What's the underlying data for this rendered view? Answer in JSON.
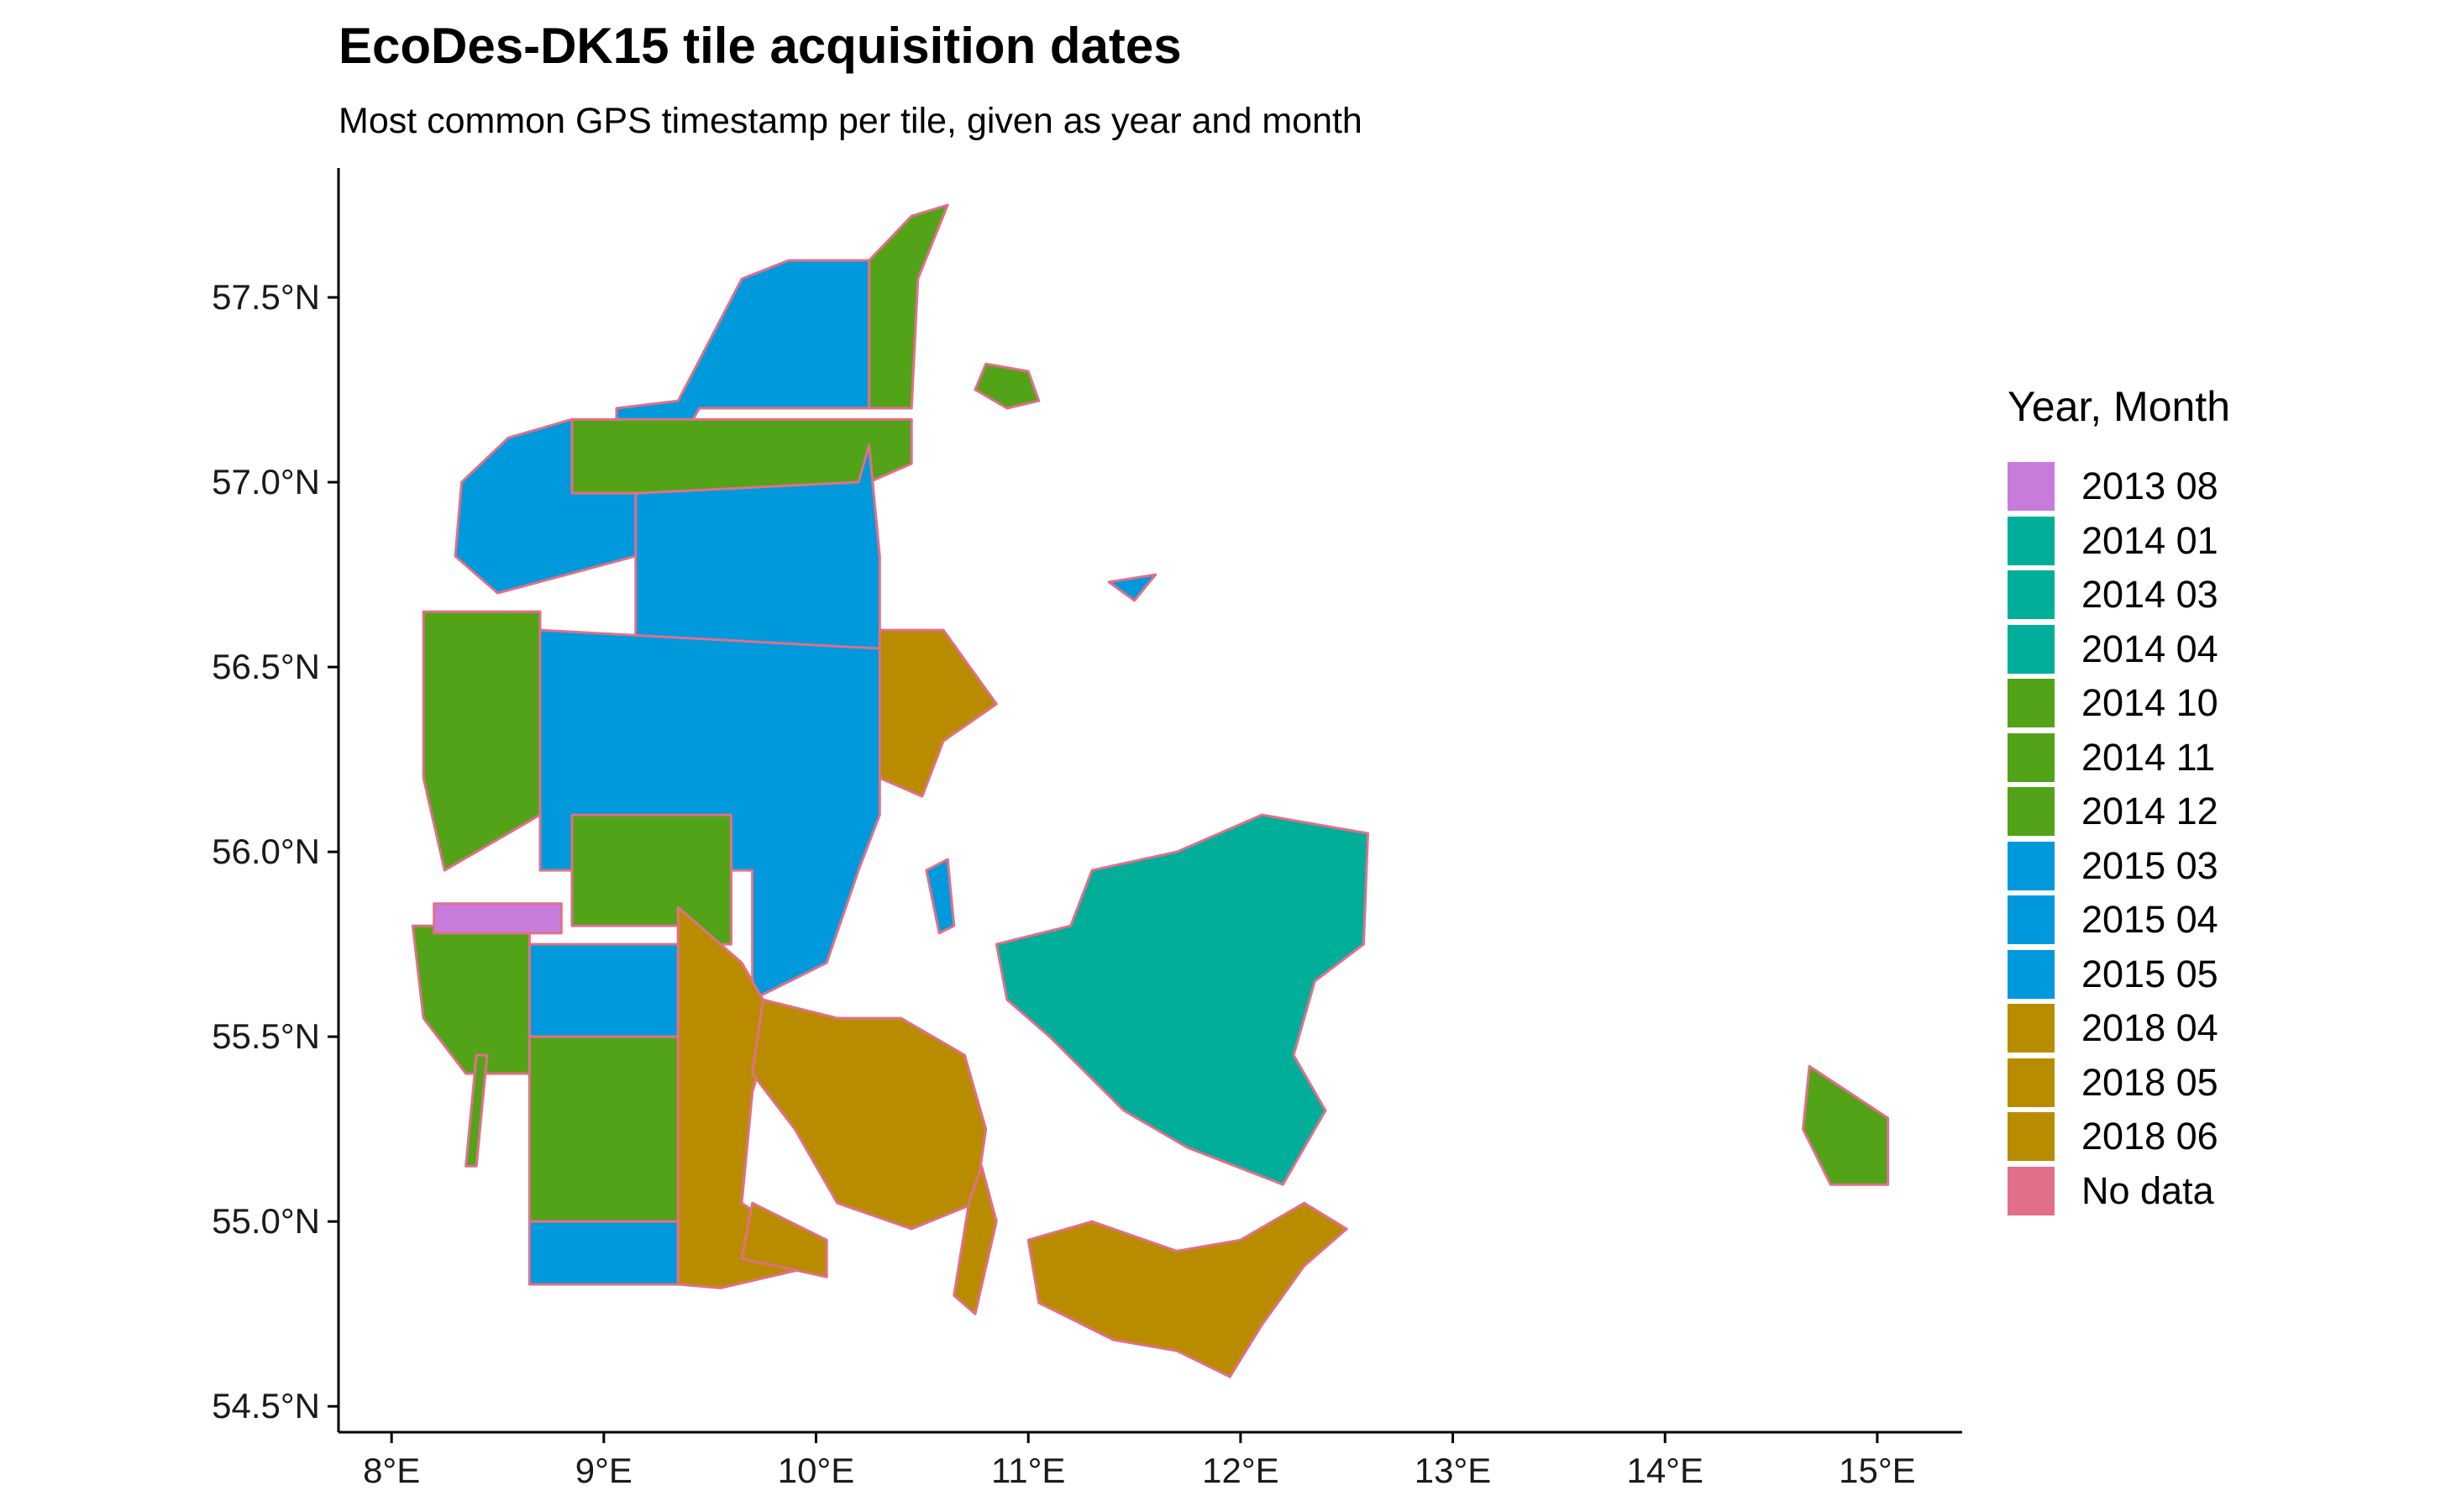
{
  "title": "EcoDes-DK15 tile acquisition dates",
  "subtitle": "Most common GPS timestamp per tile, given as year and month",
  "axes": {
    "x_ticks": [
      {
        "value": 8,
        "label": "8°E"
      },
      {
        "value": 9,
        "label": "9°E"
      },
      {
        "value": 10,
        "label": "10°E"
      },
      {
        "value": 11,
        "label": "11°E"
      },
      {
        "value": 12,
        "label": "12°E"
      },
      {
        "value": 13,
        "label": "13°E"
      },
      {
        "value": 14,
        "label": "14°E"
      },
      {
        "value": 15,
        "label": "15°E"
      }
    ],
    "y_ticks": [
      {
        "value": 54.5,
        "label": "54.5°N"
      },
      {
        "value": 55.0,
        "label": "55.0°N"
      },
      {
        "value": 55.5,
        "label": "55.5°N"
      },
      {
        "value": 56.0,
        "label": "56.0°N"
      },
      {
        "value": 56.5,
        "label": "56.5°N"
      },
      {
        "value": 57.0,
        "label": "57.0°N"
      },
      {
        "value": 57.5,
        "label": "57.5°N"
      }
    ],
    "xlim": [
      7.75,
      15.4
    ],
    "ylim": [
      54.43,
      57.85
    ]
  },
  "legend": {
    "title": "Year, Month",
    "items": [
      {
        "label": "2013 08",
        "color": "#c77cdc"
      },
      {
        "label": "2014 01",
        "color": "#00ae9a"
      },
      {
        "label": "2014 03",
        "color": "#00ae9a"
      },
      {
        "label": "2014 04",
        "color": "#00ae9a"
      },
      {
        "label": "2014 10",
        "color": "#53a318"
      },
      {
        "label": "2014 11",
        "color": "#53a318"
      },
      {
        "label": "2014 12",
        "color": "#53a318"
      },
      {
        "label": "2015 03",
        "color": "#0099dc"
      },
      {
        "label": "2015 04",
        "color": "#0099dc"
      },
      {
        "label": "2015 05",
        "color": "#0099dc"
      },
      {
        "label": "2018 04",
        "color": "#b98c00"
      },
      {
        "label": "2018 05",
        "color": "#b98c00"
      },
      {
        "label": "2018 06",
        "color": "#b98c00"
      },
      {
        "label": "No data",
        "color": "#e16f8a"
      }
    ]
  },
  "map_regions": [
    {
      "name": "north-jutland-west",
      "category": "2015 05",
      "pts": [
        [
          9.06,
          57.2
        ],
        [
          9.35,
          57.22
        ],
        [
          9.65,
          57.55
        ],
        [
          9.87,
          57.6
        ],
        [
          10.25,
          57.6
        ],
        [
          10.25,
          57.2
        ],
        [
          9.45,
          57.2
        ],
        [
          9.35,
          57.1
        ],
        [
          9.06,
          57.1
        ]
      ]
    },
    {
      "name": "vendsyssel-east",
      "category": "2014 12",
      "pts": [
        [
          10.25,
          57.6
        ],
        [
          10.45,
          57.72
        ],
        [
          10.62,
          57.75
        ],
        [
          10.48,
          57.55
        ],
        [
          10.45,
          57.2
        ],
        [
          10.25,
          57.2
        ]
      ]
    },
    {
      "name": "limfjord-north-band",
      "category": "2014 12",
      "pts": [
        [
          8.85,
          57.17
        ],
        [
          9.45,
          57.17
        ],
        [
          10.45,
          57.17
        ],
        [
          10.45,
          57.05
        ],
        [
          10.25,
          57.0
        ],
        [
          9.45,
          56.97
        ],
        [
          8.85,
          56.97
        ]
      ]
    },
    {
      "name": "thy-west",
      "category": "2015 03",
      "pts": [
        [
          8.33,
          57.0
        ],
        [
          8.55,
          57.12
        ],
        [
          8.85,
          57.17
        ],
        [
          8.85,
          56.97
        ],
        [
          9.15,
          56.97
        ],
        [
          9.15,
          56.8
        ],
        [
          8.5,
          56.7
        ],
        [
          8.3,
          56.8
        ]
      ]
    },
    {
      "name": "himmerland",
      "category": "2015 04",
      "pts": [
        [
          9.15,
          56.97
        ],
        [
          10.2,
          57.0
        ],
        [
          10.25,
          57.1
        ],
        [
          10.3,
          56.8
        ],
        [
          10.3,
          56.5
        ],
        [
          9.15,
          56.5
        ]
      ]
    },
    {
      "name": "djursland",
      "category": "2018 04",
      "pts": [
        [
          10.3,
          56.6
        ],
        [
          10.6,
          56.6
        ],
        [
          10.85,
          56.4
        ],
        [
          10.6,
          56.3
        ],
        [
          10.5,
          56.15
        ],
        [
          10.3,
          56.2
        ]
      ]
    },
    {
      "name": "west-jutland-strip",
      "category": "2014 10",
      "pts": [
        [
          8.15,
          56.65
        ],
        [
          8.7,
          56.65
        ],
        [
          8.7,
          56.45
        ],
        [
          8.7,
          56.1
        ],
        [
          8.25,
          55.95
        ],
        [
          8.15,
          56.2
        ]
      ]
    },
    {
      "name": "central-jutland",
      "category": "2015 03",
      "pts": [
        [
          8.7,
          56.6
        ],
        [
          10.3,
          56.55
        ],
        [
          10.3,
          56.1
        ],
        [
          10.2,
          55.95
        ],
        [
          10.05,
          55.7
        ],
        [
          9.7,
          55.6
        ],
        [
          9.7,
          55.95
        ],
        [
          8.7,
          55.95
        ]
      ]
    },
    {
      "name": "vejle-area",
      "category": "2014 11",
      "pts": [
        [
          8.85,
          56.1
        ],
        [
          9.6,
          56.1
        ],
        [
          9.6,
          55.75
        ],
        [
          9.35,
          55.75
        ],
        [
          9.35,
          55.8
        ],
        [
          8.85,
          55.8
        ]
      ]
    },
    {
      "name": "esbjerg-area",
      "category": "2014 11",
      "pts": [
        [
          8.1,
          55.8
        ],
        [
          8.65,
          55.8
        ],
        [
          8.65,
          55.4
        ],
        [
          8.35,
          55.4
        ],
        [
          8.15,
          55.55
        ]
      ]
    },
    {
      "name": "ringkobing-purple",
      "category": "2013 08",
      "pts": [
        [
          8.2,
          55.86
        ],
        [
          8.8,
          55.86
        ],
        [
          8.8,
          55.78
        ],
        [
          8.2,
          55.78
        ]
      ]
    },
    {
      "name": "sonderjylland-blue",
      "category": "2015 04",
      "pts": [
        [
          8.65,
          55.75
        ],
        [
          9.35,
          55.75
        ],
        [
          9.35,
          55.5
        ],
        [
          8.65,
          55.5
        ]
      ]
    },
    {
      "name": "sonderjylland-south",
      "category": "2014 11",
      "pts": [
        [
          8.65,
          55.5
        ],
        [
          9.35,
          55.5
        ],
        [
          9.35,
          55.0
        ],
        [
          8.65,
          55.0
        ]
      ]
    },
    {
      "name": "border-strip",
      "category": "2015 05",
      "pts": [
        [
          8.65,
          55.0
        ],
        [
          9.35,
          55.0
        ],
        [
          9.35,
          54.83
        ],
        [
          8.65,
          54.83
        ]
      ]
    },
    {
      "name": "east-jutland-south",
      "category": "2018 05",
      "pts": [
        [
          9.35,
          55.85
        ],
        [
          9.65,
          55.7
        ],
        [
          9.8,
          55.55
        ],
        [
          9.7,
          55.35
        ],
        [
          9.65,
          55.05
        ],
        [
          9.9,
          54.95
        ],
        [
          10.0,
          54.88
        ],
        [
          9.55,
          54.82
        ],
        [
          9.35,
          54.83
        ]
      ]
    },
    {
      "name": "funen",
      "category": "2018 05",
      "pts": [
        [
          9.75,
          55.6
        ],
        [
          10.1,
          55.55
        ],
        [
          10.4,
          55.55
        ],
        [
          10.7,
          55.45
        ],
        [
          10.8,
          55.25
        ],
        [
          10.75,
          55.05
        ],
        [
          10.45,
          54.98
        ],
        [
          10.1,
          55.05
        ],
        [
          9.9,
          55.25
        ],
        [
          9.7,
          55.4
        ]
      ]
    },
    {
      "name": "als",
      "category": "2018 05",
      "pts": [
        [
          9.7,
          55.05
        ],
        [
          10.05,
          54.95
        ],
        [
          10.05,
          54.85
        ],
        [
          9.65,
          54.9
        ]
      ]
    },
    {
      "name": "langeland",
      "category": "2018 06",
      "pts": [
        [
          10.78,
          55.15
        ],
        [
          10.85,
          55.0
        ],
        [
          10.75,
          54.75
        ],
        [
          10.65,
          54.8
        ],
        [
          10.72,
          55.05
        ]
      ]
    },
    {
      "name": "lolland-falster",
      "category": "2018 04",
      "pts": [
        [
          11.0,
          54.95
        ],
        [
          11.3,
          55.0
        ],
        [
          11.7,
          54.92
        ],
        [
          12.0,
          54.95
        ],
        [
          12.3,
          55.05
        ],
        [
          12.5,
          54.98
        ],
        [
          12.3,
          54.88
        ],
        [
          12.1,
          54.72
        ],
        [
          11.95,
          54.58
        ],
        [
          11.7,
          54.65
        ],
        [
          11.4,
          54.68
        ],
        [
          11.05,
          54.78
        ]
      ]
    },
    {
      "name": "zealand",
      "category": "2014 03",
      "pts": [
        [
          10.85,
          55.75
        ],
        [
          11.2,
          55.8
        ],
        [
          11.3,
          55.95
        ],
        [
          11.7,
          56.0
        ],
        [
          12.1,
          56.1
        ],
        [
          12.6,
          56.05
        ],
        [
          12.58,
          55.75
        ],
        [
          12.35,
          55.65
        ],
        [
          12.25,
          55.45
        ],
        [
          12.4,
          55.3
        ],
        [
          12.2,
          55.1
        ],
        [
          11.75,
          55.2
        ],
        [
          11.45,
          55.3
        ],
        [
          11.1,
          55.5
        ],
        [
          10.9,
          55.6
        ]
      ]
    },
    {
      "name": "samso",
      "category": "2015 04",
      "pts": [
        [
          10.52,
          55.95
        ],
        [
          10.62,
          55.98
        ],
        [
          10.65,
          55.8
        ],
        [
          10.58,
          55.78
        ]
      ]
    },
    {
      "name": "anholt",
      "category": "2015 03",
      "pts": [
        [
          11.38,
          56.73
        ],
        [
          11.6,
          56.75
        ],
        [
          11.5,
          56.68
        ]
      ]
    },
    {
      "name": "laeso",
      "category": "2014 12",
      "pts": [
        [
          10.8,
          57.32
        ],
        [
          11.0,
          57.3
        ],
        [
          11.05,
          57.22
        ],
        [
          10.9,
          57.2
        ],
        [
          10.75,
          57.25
        ]
      ]
    },
    {
      "name": "bornholm",
      "category": "2014 12",
      "pts": [
        [
          14.68,
          55.42
        ],
        [
          15.05,
          55.28
        ],
        [
          15.05,
          55.1
        ],
        [
          14.78,
          55.1
        ],
        [
          14.65,
          55.25
        ]
      ]
    },
    {
      "name": "fano",
      "category": "2014 10",
      "pts": [
        [
          8.4,
          55.45
        ],
        [
          8.45,
          55.45
        ],
        [
          8.4,
          55.15
        ],
        [
          8.35,
          55.15
        ]
      ]
    }
  ]
}
